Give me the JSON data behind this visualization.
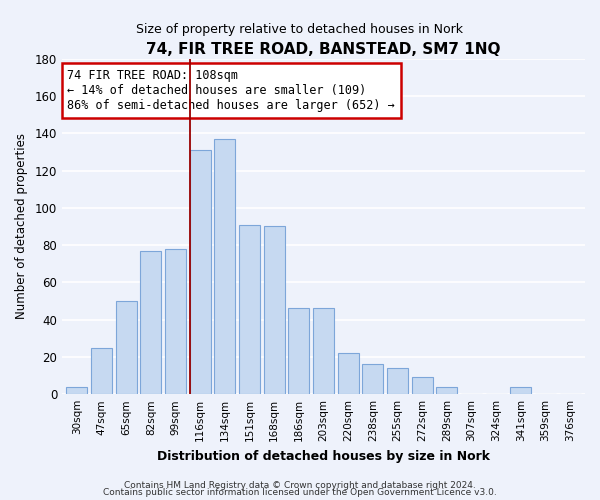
{
  "title": "74, FIR TREE ROAD, BANSTEAD, SM7 1NQ",
  "subtitle": "Size of property relative to detached houses in Nork",
  "xlabel": "Distribution of detached houses by size in Nork",
  "ylabel": "Number of detached properties",
  "bar_labels": [
    "30sqm",
    "47sqm",
    "65sqm",
    "82sqm",
    "99sqm",
    "116sqm",
    "134sqm",
    "151sqm",
    "168sqm",
    "186sqm",
    "203sqm",
    "220sqm",
    "238sqm",
    "255sqm",
    "272sqm",
    "289sqm",
    "307sqm",
    "324sqm",
    "341sqm",
    "359sqm",
    "376sqm"
  ],
  "bar_values": [
    4,
    25,
    50,
    77,
    78,
    131,
    137,
    91,
    90,
    46,
    46,
    22,
    16,
    14,
    9,
    4,
    0,
    0,
    4,
    0,
    0
  ],
  "bar_color": "#c6d9f1",
  "bar_edge_color": "#7da6d9",
  "annotation_text": "74 FIR TREE ROAD: 108sqm\n← 14% of detached houses are smaller (109)\n86% of semi-detached houses are larger (652) →",
  "annotation_box_color": "#ffffff",
  "annotation_box_edge": "#cc0000",
  "vline_color": "#990000",
  "ylim": [
    0,
    180
  ],
  "yticks": [
    0,
    20,
    40,
    60,
    80,
    100,
    120,
    140,
    160,
    180
  ],
  "footer_line1": "Contains HM Land Registry data © Crown copyright and database right 2024.",
  "footer_line2": "Contains public sector information licensed under the Open Government Licence v3.0.",
  "bg_color": "#eef2fb",
  "grid_color": "#ffffff"
}
